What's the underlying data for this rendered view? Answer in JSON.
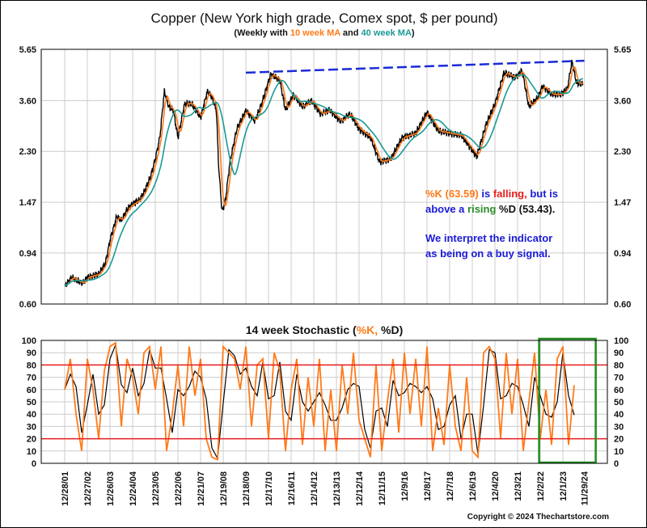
{
  "chart_data": [
    {
      "type": "line",
      "title": "Copper (New York high grade, Comex spot, $ per pound)",
      "subtitle": {
        "prefix": "(Weekly with ",
        "ma10": "10 week MA",
        "mid": " and ",
        "ma40": "40 week MA",
        "suffix": ")"
      },
      "scale": "log",
      "ylim": [
        0.6,
        5.65
      ],
      "yticks": [
        "5.65",
        "3.60",
        "2.30",
        "1.47",
        "0.94",
        "0.60"
      ],
      "ytick_values": [
        5.65,
        3.6,
        2.3,
        1.47,
        0.94,
        0.6
      ],
      "xlim": [
        2001.7,
        2025.6
      ],
      "series": [
        {
          "name": "Weekly price",
          "color": "#000000",
          "x": [
            2002.0,
            2002.3,
            2002.5,
            2002.8,
            2003.0,
            2003.5,
            2003.8,
            2004.0,
            2004.3,
            2004.5,
            2004.8,
            2005.0,
            2005.3,
            2005.5,
            2005.8,
            2006.0,
            2006.2,
            2006.4,
            2006.6,
            2006.8,
            2007.0,
            2007.3,
            2007.6,
            2007.8,
            2008.0,
            2008.3,
            2008.5,
            2008.7,
            2008.8,
            2008.95,
            2009.1,
            2009.3,
            2009.6,
            2010.0,
            2010.4,
            2010.7,
            2011.1,
            2011.5,
            2011.75,
            2012.1,
            2012.5,
            2012.9,
            2013.3,
            2013.7,
            2014.2,
            2014.6,
            2015.0,
            2015.5,
            2015.9,
            2016.4,
            2016.9,
            2017.5,
            2018.0,
            2018.5,
            2019.0,
            2019.5,
            2020.2,
            2020.6,
            2021.0,
            2021.4,
            2021.9,
            2022.2,
            2022.5,
            2022.9,
            2023.1,
            2023.5,
            2023.9,
            2024.2,
            2024.4,
            2024.6,
            2024.9
          ],
          "y": [
            0.7,
            0.76,
            0.74,
            0.72,
            0.76,
            0.78,
            0.86,
            1.05,
            1.3,
            1.25,
            1.4,
            1.45,
            1.5,
            1.6,
            1.85,
            2.15,
            2.6,
            3.9,
            3.4,
            3.3,
            2.6,
            3.5,
            3.5,
            3.3,
            3.1,
            3.9,
            3.7,
            3.3,
            2.0,
            1.35,
            1.5,
            2.1,
            2.8,
            3.3,
            3.0,
            3.5,
            4.55,
            4.3,
            3.3,
            3.8,
            3.4,
            3.6,
            3.2,
            3.3,
            3.0,
            3.2,
            2.8,
            2.6,
            2.1,
            2.15,
            2.6,
            2.7,
            3.25,
            2.75,
            2.7,
            2.65,
            2.2,
            2.9,
            3.5,
            4.6,
            4.4,
            4.7,
            3.4,
            3.7,
            4.1,
            3.8,
            3.8,
            4.0,
            5.1,
            4.2,
            4.15
          ]
        },
        {
          "name": "10 week MA",
          "color": "#ff7a1a"
        },
        {
          "name": "40 week MA",
          "color": "#1a9a94"
        },
        {
          "name": "Resistance trendline",
          "color": "#1a2bd8",
          "style": "dashed",
          "x": [
            2010.0,
            2024.95
          ],
          "y": [
            4.6,
            5.11
          ]
        }
      ],
      "annotation": {
        "line1": [
          {
            "text": "%K (63.59)",
            "color": "#ff7a1a"
          },
          {
            "text": " is ",
            "color": "#1a1ad8"
          },
          {
            "text": "falling,",
            "color": "#e81c1c"
          },
          {
            "text": " but is",
            "color": "#1a1ad8"
          }
        ],
        "line2": [
          {
            "text": "above a ",
            "color": "#1a1ad8"
          },
          {
            "text": "rising",
            "color": "#2a8a2a"
          },
          {
            "text": " %D (53.43).",
            "color": "#111111"
          }
        ],
        "line3": "We interpret the indicator",
        "line4": "as being on a buy signal."
      }
    },
    {
      "type": "line",
      "title": {
        "prefix": "14 week Stochastic (",
        "k": "%K,",
        "d": " %D)"
      },
      "ylim": [
        0,
        100
      ],
      "yticks": [
        "100",
        "90",
        "80",
        "70",
        "60",
        "50",
        "40",
        "30",
        "20",
        "10",
        "0"
      ],
      "ytick_values": [
        100,
        90,
        80,
        70,
        60,
        50,
        40,
        30,
        20,
        10,
        0
      ],
      "reference_lines": [
        80,
        20
      ],
      "highlight_box_years": [
        2022.95,
        2024.95
      ],
      "k_start": 2002.0,
      "k_step_years": 0.25,
      "k_values": [
        60,
        85,
        40,
        10,
        85,
        60,
        20,
        75,
        95,
        98,
        30,
        85,
        70,
        40,
        90,
        95,
        60,
        95,
        10,
        40,
        80,
        30,
        95,
        55,
        85,
        20,
        5,
        3,
        95,
        90,
        85,
        60,
        95,
        30,
        80,
        85,
        20,
        90,
        75,
        10,
        60,
        85,
        15,
        70,
        30,
        85,
        10,
        60,
        10,
        80,
        40,
        90,
        35,
        20,
        5,
        80,
        10,
        50,
        85,
        25,
        90,
        40,
        85,
        30,
        95,
        10,
        45,
        15,
        80,
        30,
        10,
        70,
        10,
        5,
        90,
        95,
        85,
        20,
        90,
        40,
        85,
        10,
        50,
        90,
        20,
        60,
        15,
        85,
        95,
        15,
        63.59
      ],
      "k_latest": 63.59,
      "d_latest": 53.43,
      "colors": {
        "k": "#ff7a1a",
        "d": "#000000",
        "ref": "#e81c1c",
        "box": "#1e8a1e"
      }
    }
  ],
  "x_axis": {
    "tick_labels": [
      "12/28/01",
      "12/27/02",
      "12/26/03",
      "12/24/04",
      "12/23/05",
      "12/22/06",
      "12/21/07",
      "12/19/08",
      "12/18/09",
      "12/17/10",
      "12/16/11",
      "12/14/12",
      "12/13/13",
      "12/12/14",
      "12/11/15",
      "12/9/16",
      "12/8/17",
      "12/7/18",
      "12/6/19",
      "12/4/20",
      "12/3/21",
      "12/2/22",
      "12/1/23",
      "11/29/24"
    ],
    "tick_years": [
      2002,
      2003,
      2004,
      2005,
      2006,
      2007,
      2008,
      2009,
      2010,
      2011,
      2012,
      2013,
      2014,
      2015,
      2016,
      2017,
      2018,
      2019,
      2020,
      2021,
      2022,
      2023,
      2024,
      2024.95
    ]
  },
  "copyright": "Copyright © 2024 Thechartstore.com"
}
